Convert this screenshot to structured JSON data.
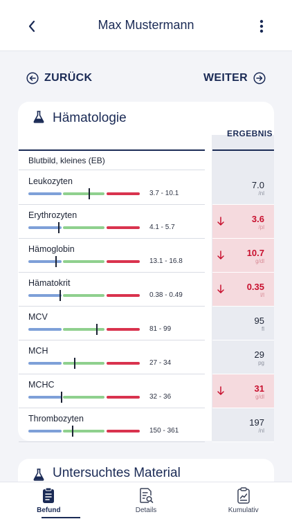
{
  "header": {
    "title": "Max Mustermann"
  },
  "nav": {
    "back_label": "ZURÜCK",
    "next_label": "WEITER"
  },
  "section": {
    "title": "Hämatologie",
    "result_header": "ERGEBNIS",
    "group_label": "Blutbild, kleines (EB)",
    "rows": [
      {
        "name": "Leukozyten",
        "range": "3.7 - 10.1",
        "value": "7.0",
        "unit": "/nl",
        "flag": "normal",
        "level": 0.54
      },
      {
        "name": "Erythrozyten",
        "range": "4.1 - 5.7",
        "value": "3.6",
        "unit": "/pl",
        "flag": "low",
        "level": 0.27
      },
      {
        "name": "Hämoglobin",
        "range": "13.1 - 16.8",
        "value": "10.7",
        "unit": "g/dl",
        "flag": "low",
        "level": 0.24
      },
      {
        "name": "Hämatokrit",
        "range": "0.38 - 0.49",
        "value": "0.35",
        "unit": "l/l",
        "flag": "low",
        "level": 0.28
      },
      {
        "name": "MCV",
        "range": "81 - 99",
        "value": "95",
        "unit": "fl",
        "flag": "normal",
        "level": 0.61
      },
      {
        "name": "MCH",
        "range": "27 - 34",
        "value": "29",
        "unit": "pg",
        "flag": "normal",
        "level": 0.41
      },
      {
        "name": "MCHC",
        "range": "32 - 36",
        "value": "31",
        "unit": "g/dl",
        "flag": "low",
        "level": 0.29
      },
      {
        "name": "Thrombozyten",
        "range": "150 - 361",
        "value": "197",
        "unit": "/nl",
        "flag": "normal",
        "level": 0.39
      }
    ]
  },
  "section2": {
    "title": "Untersuchtes Material"
  },
  "tabs": [
    {
      "label": "Befund",
      "icon": "clipboard-icon",
      "active": true
    },
    {
      "label": "Details",
      "icon": "document-search-icon",
      "active": false
    },
    {
      "label": "Kumulativ",
      "icon": "clipboard-chart-icon",
      "active": false
    }
  ],
  "colors": {
    "accent": "#1a2a55",
    "low": "#c8102e",
    "range_low": "#7ea0d8",
    "range_normal": "#8fd08e",
    "range_high": "#d9334e"
  }
}
